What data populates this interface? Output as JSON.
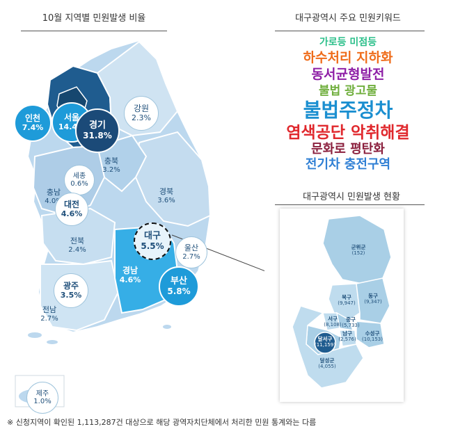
{
  "left_title": "10월 지역별 민원발생 비율",
  "keywords_title": "대구광역시 주요 민원키워드",
  "keywords": [
    {
      "text": "가로등 미점등",
      "color": "#2bbf8a"
    },
    {
      "text": "하수처리 지하화",
      "color": "#ef6c1a"
    },
    {
      "text": "동서균형발전",
      "color": "#8e1fa6"
    },
    {
      "text": "불법 광고물",
      "color": "#6fae3c"
    },
    {
      "text": "불법주정차",
      "color": "#1b8fd0"
    },
    {
      "text": "염색공단 악취해결",
      "color": "#e0282d"
    },
    {
      "text": "문화로 평탄화",
      "color": "#8a1e3c"
    },
    {
      "text": "전기차 충전구역",
      "color": "#2f7fd4"
    }
  ],
  "daegu_title": "대구광역시 민원발생 현황",
  "regions": [
    {
      "name": "인천",
      "value": "7.4%"
    },
    {
      "name": "서울",
      "value": "14.4%"
    },
    {
      "name": "경기",
      "value": "31.8%"
    },
    {
      "name": "강원",
      "value": "2.3%"
    },
    {
      "name": "세종",
      "value": "0.6%"
    },
    {
      "name": "충북",
      "value": "3.2%"
    },
    {
      "name": "충남",
      "value": "4.0%"
    },
    {
      "name": "대전",
      "value": "4.6%"
    },
    {
      "name": "경북",
      "value": "3.6%"
    },
    {
      "name": "대구",
      "value": "5.5%"
    },
    {
      "name": "전북",
      "value": "2.4%"
    },
    {
      "name": "울산",
      "value": "2.7%"
    },
    {
      "name": "경남",
      "value": "4.6%"
    },
    {
      "name": "부산",
      "value": "5.8%"
    },
    {
      "name": "광주",
      "value": "3.5%"
    },
    {
      "name": "전남",
      "value": "2.7%"
    },
    {
      "name": "제주",
      "value": "1.0%"
    }
  ],
  "districts": [
    {
      "name": "군위군",
      "value": "(152)"
    },
    {
      "name": "북구",
      "value": "(9,947)"
    },
    {
      "name": "동구",
      "value": "(9,347)"
    },
    {
      "name": "서구",
      "value": "(8,108)"
    },
    {
      "name": "중구",
      "value": "(5,733)"
    },
    {
      "name": "달서구",
      "value": "(11,159)"
    },
    {
      "name": "남구",
      "value": "(2,576)"
    },
    {
      "name": "수성구",
      "value": "(10,153)"
    },
    {
      "name": "달성군",
      "value": "(4,055)"
    }
  ],
  "footnote": "※ 신청지역이 확인된 1,113,287건 대상으로 해당 광역자치단체에서 처리한 민원 통계와는 다름"
}
